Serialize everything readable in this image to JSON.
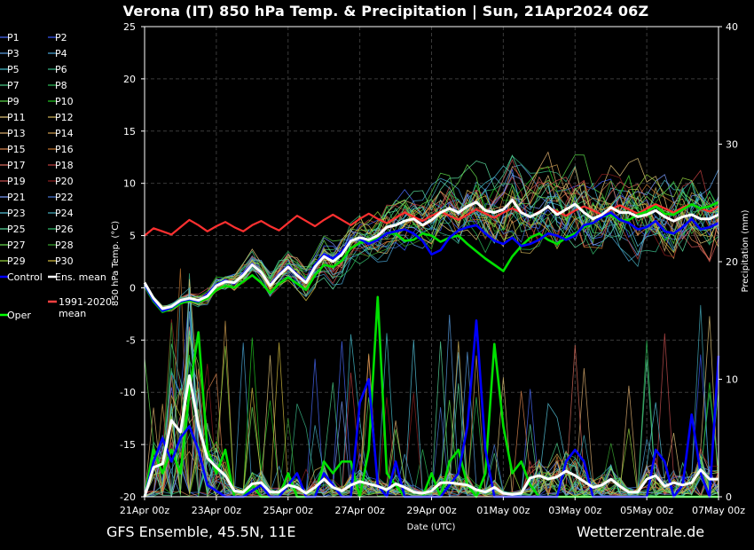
{
  "title": "Verona  (IT)  850 hPa Temp. & Precipitation | Sun, 21Apr2024 06Z",
  "footer": {
    "model": "GFS Ensemble, 45.5N, 11E",
    "site": "Wetterzentrale.de"
  },
  "chart_data": {
    "type": "line",
    "title": "Verona  (IT)  850 hPa Temp. & Precipitation | Sun, 21Apr2024 06Z",
    "xlabel": "Date (UTC)",
    "ylabel": "850 hPa Temp. (°C)",
    "y2label": "Precipitation (mm)",
    "xlim": [
      0,
      16
    ],
    "ylim": [
      -20,
      25
    ],
    "y2lim": [
      0,
      40
    ],
    "grid": true,
    "x_ticks": [
      {
        "x": 0,
        "label": "21Apr 00z"
      },
      {
        "x": 2,
        "label": "23Apr 00z"
      },
      {
        "x": 4,
        "label": "25Apr 00z"
      },
      {
        "x": 6,
        "label": "27Apr 00z"
      },
      {
        "x": 8,
        "label": "29Apr 00z"
      },
      {
        "x": 10,
        "label": "01May 00z"
      },
      {
        "x": 12,
        "label": "03May 00z"
      },
      {
        "x": 14,
        "label": "05May 00z"
      },
      {
        "x": 16,
        "label": "07May 00z"
      }
    ],
    "y_ticks": [
      25,
      20,
      15,
      10,
      5,
      0,
      -5,
      -10,
      -15,
      -20
    ],
    "y2_ticks": [
      40,
      30,
      20,
      10,
      0
    ],
    "legend": [
      {
        "label": "P1",
        "color": "#4a6cff"
      },
      {
        "label": "P2",
        "color": "#3a5bff"
      },
      {
        "label": "P3",
        "color": "#5aa0e6"
      },
      {
        "label": "P4",
        "color": "#4aa8d8"
      },
      {
        "label": "P5",
        "color": "#46c0d0"
      },
      {
        "label": "P6",
        "color": "#3ab88a"
      },
      {
        "label": "P7",
        "color": "#4ad08a"
      },
      {
        "label": "P8",
        "color": "#2ec05a"
      },
      {
        "label": "P9",
        "color": "#5ad84a"
      },
      {
        "label": "P10",
        "color": "#22cc22"
      },
      {
        "label": "P11",
        "color": "#e6c87a"
      },
      {
        "label": "P12",
        "color": "#d6b85a"
      },
      {
        "label": "P13",
        "color": "#e0b070"
      },
      {
        "label": "P14",
        "color": "#d2a050"
      },
      {
        "label": "P15",
        "color": "#e08850"
      },
      {
        "label": "P16",
        "color": "#c87830"
      },
      {
        "label": "P17",
        "color": "#e07060"
      },
      {
        "label": "P18",
        "color": "#c04040"
      },
      {
        "label": "P19",
        "color": "#c85050"
      },
      {
        "label": "P20",
        "color": "#902020"
      },
      {
        "label": "P21",
        "color": "#7a9cff"
      },
      {
        "label": "P22",
        "color": "#4a7ad8"
      },
      {
        "label": "P23",
        "color": "#56c8e0"
      },
      {
        "label": "P24",
        "color": "#46b0c0"
      },
      {
        "label": "P25",
        "color": "#5ae0a0"
      },
      {
        "label": "P26",
        "color": "#34c070"
      },
      {
        "label": "P27",
        "color": "#6ae050"
      },
      {
        "label": "P28",
        "color": "#3aa830"
      },
      {
        "label": "P29",
        "color": "#9ad840"
      },
      {
        "label": "P30",
        "color": "#d8c040"
      },
      {
        "label": "Control",
        "color": "#0000ff"
      },
      {
        "label": "Ens. mean",
        "color": "#ffffff"
      },
      {
        "label": "1991-2020 mean",
        "color": "#ff4040"
      },
      {
        "label": "Oper",
        "color": "#00ff00"
      }
    ],
    "series": [
      {
        "name": "1991-2020 mean",
        "axis": "temp",
        "x": [
          0,
          0.25,
          0.5,
          0.75,
          1,
          1.25,
          1.5,
          1.75,
          2,
          2.25,
          2.5,
          2.75,
          3,
          3.25,
          3.5,
          3.75,
          4,
          4.25,
          4.5,
          4.75,
          5,
          5.25,
          5.5,
          5.75,
          6,
          6.25,
          6.5,
          6.75,
          7,
          7.25,
          7.5,
          7.75,
          8,
          8.25,
          8.5,
          8.75,
          9,
          9.25,
          9.5,
          9.75,
          10,
          10.25,
          10.5,
          10.75,
          11,
          11.25,
          11.5,
          11.75,
          12,
          12.25,
          12.5,
          12.75,
          13,
          13.25,
          13.5,
          13.75,
          14,
          14.25,
          14.5,
          14.75,
          15,
          15.25,
          15.5,
          15.75,
          16
        ],
        "y": [
          5,
          5.7,
          5.4,
          5.1,
          5.8,
          6.5,
          6,
          5.4,
          5.9,
          6.3,
          5.8,
          5.4,
          6,
          6.4,
          5.9,
          5.5,
          6.2,
          6.9,
          6.4,
          5.9,
          6.5,
          7,
          6.5,
          6,
          6.6,
          7.1,
          6.6,
          6.2,
          6.7,
          7.2,
          6.8,
          6.4,
          6.9,
          7.3,
          6.9,
          6.5,
          7,
          7.5,
          7.1,
          6.7,
          7.2,
          7.6,
          7.2,
          6.8,
          7.3,
          7.7,
          7.3,
          6.9,
          7.4,
          7.8,
          7.4,
          7,
          7.5,
          7.9,
          7.5,
          7.1,
          7.6,
          8,
          7.6,
          7.2,
          7.7,
          8,
          7.6,
          7.3,
          7.8
        ]
      },
      {
        "name": "Ens. mean",
        "axis": "temp",
        "x": [
          0,
          0.25,
          0.5,
          0.75,
          1,
          1.25,
          1.5,
          1.75,
          2,
          2.25,
          2.5,
          2.75,
          3,
          3.25,
          3.5,
          3.75,
          4,
          4.25,
          4.5,
          4.75,
          5,
          5.25,
          5.5,
          5.75,
          6,
          6.25,
          6.5,
          6.75,
          7,
          7.25,
          7.5,
          7.75,
          8,
          8.25,
          8.5,
          8.75,
          9,
          9.25,
          9.5,
          9.75,
          10,
          10.25,
          10.5,
          10.75,
          11,
          11.25,
          11.5,
          11.75,
          12,
          12.25,
          12.5,
          12.75,
          13,
          13.25,
          13.5,
          13.75,
          14,
          14.25,
          14.5,
          14.75,
          15,
          15.25,
          15.5,
          15.75,
          16
        ],
        "y": [
          0.5,
          -1,
          -2,
          -1.8,
          -1.2,
          -1,
          -1.2,
          -0.8,
          0.2,
          0.6,
          0.5,
          1.2,
          2.2,
          1.5,
          0.2,
          1.2,
          2,
          1.2,
          0.5,
          2,
          3,
          2.5,
          3.2,
          4.5,
          4.8,
          4.6,
          5,
          5.8,
          6,
          6.4,
          6.6,
          6,
          6.5,
          7.2,
          7.6,
          7.2,
          7.8,
          8.2,
          7.4,
          7.2,
          7.5,
          8.4,
          7.2,
          6.8,
          7.2,
          7.8,
          7,
          7.5,
          8,
          7.2,
          6.6,
          7,
          7.7,
          7.2,
          7.2,
          6.8,
          7,
          7.4,
          6.8,
          6.4,
          6.8,
          7,
          6.6,
          6.6,
          7
        ]
      },
      {
        "name": "Control",
        "axis": "temp",
        "x": [
          0,
          0.25,
          0.5,
          0.75,
          1,
          1.25,
          1.5,
          1.75,
          2,
          2.25,
          2.5,
          2.75,
          3,
          3.25,
          3.5,
          3.75,
          4,
          4.25,
          4.5,
          4.75,
          5,
          5.25,
          5.5,
          5.75,
          6,
          6.25,
          6.5,
          6.75,
          7,
          7.25,
          7.5,
          7.75,
          8,
          8.25,
          8.5,
          8.75,
          9,
          9.25,
          9.5,
          9.75,
          10,
          10.25,
          10.5,
          10.75,
          11,
          11.25,
          11.5,
          11.75,
          12,
          12.25,
          12.5,
          12.75,
          13,
          13.25,
          13.5,
          13.75,
          14,
          14.25,
          14.5,
          14.75,
          15,
          15.25,
          15.5,
          15.75,
          16
        ],
        "y": [
          0.3,
          -1.2,
          -2.2,
          -1.9,
          -1.3,
          -1.1,
          -1.3,
          -0.6,
          0.3,
          0.7,
          0.4,
          1.3,
          2.3,
          1.4,
          0.3,
          1.3,
          2.1,
          1.3,
          0.6,
          2.2,
          3.2,
          2.8,
          3.5,
          4.6,
          4.7,
          4.2,
          4.6,
          5.2,
          5.4,
          5.6,
          5.2,
          4.5,
          3.2,
          3.6,
          4.8,
          5.5,
          5.8,
          6,
          5.2,
          4.5,
          4.2,
          4.8,
          4,
          4.2,
          4.6,
          5.2,
          5,
          4.6,
          5,
          6,
          6.2,
          6.8,
          7.2,
          6.5,
          6.2,
          5.6,
          5.8,
          6.4,
          5.4,
          5.2,
          5.8,
          6.6,
          5.6,
          5.8,
          6.2
        ]
      },
      {
        "name": "Oper",
        "axis": "temp",
        "x": [
          0,
          0.25,
          0.5,
          0.75,
          1,
          1.25,
          1.5,
          1.75,
          2,
          2.25,
          2.5,
          2.75,
          3,
          3.25,
          3.5,
          3.75,
          4,
          4.25,
          4.5,
          4.75,
          5,
          5.25,
          5.5,
          5.75,
          6,
          6.25,
          6.5,
          6.75,
          7,
          7.25,
          7.5,
          7.75,
          8,
          8.25,
          8.5,
          8.75,
          9,
          9.25,
          9.5,
          9.75,
          10,
          10.25,
          10.5,
          10.75,
          11,
          11.25,
          11.5,
          11.75,
          12,
          12.25,
          12.5,
          12.75,
          13,
          13.25,
          13.5,
          13.75,
          14,
          14.25,
          14.5,
          14.75,
          15,
          15.25,
          15.5,
          15.75,
          16
        ],
        "y": [
          0.2,
          -1.3,
          -2.3,
          -2,
          -1.5,
          -1.2,
          -1.4,
          -1,
          -0.2,
          0.2,
          0,
          0.6,
          1.2,
          0.5,
          -0.5,
          0.4,
          1,
          0.4,
          -0.2,
          1.2,
          2.2,
          2,
          2.6,
          3.8,
          4.3,
          4.5,
          4.7,
          5.2,
          5.2,
          4.5,
          4.6,
          5.2,
          5,
          4.4,
          4.8,
          5,
          4.2,
          3.5,
          2.8,
          2.2,
          1.6,
          3,
          4,
          4.8,
          5.2,
          4.6,
          4.2,
          4.8,
          5.2,
          5.8,
          6.2,
          6.8,
          7,
          6.4,
          6.5,
          7,
          7.3,
          7.8,
          7.1,
          7,
          7.5,
          8,
          7.6,
          7.8,
          8.2
        ]
      },
      {
        "name": "Ens. mean precip",
        "axis": "precip",
        "x": [
          0,
          0.25,
          0.5,
          0.75,
          1,
          1.25,
          1.5,
          1.75,
          2,
          2.25,
          2.5,
          2.75,
          3,
          3.25,
          3.5,
          3.75,
          4,
          4.25,
          4.5,
          4.75,
          5,
          5.25,
          5.5,
          5.75,
          6,
          6.25,
          6.5,
          6.75,
          7,
          7.25,
          7.5,
          7.75,
          8,
          8.25,
          8.5,
          8.75,
          9,
          9.25,
          9.5,
          9.75,
          10,
          10.25,
          10.5,
          10.75,
          11,
          11.25,
          11.5,
          11.75,
          12,
          12.25,
          12.5,
          12.75,
          13,
          13.25,
          13.5,
          13.75,
          14,
          14.25,
          14.5,
          14.75,
          15,
          15.25,
          15.5,
          15.75,
          16
        ],
        "y": [
          0,
          2.5,
          2.8,
          6.5,
          5.5,
          10.3,
          6,
          3.3,
          2.5,
          1.8,
          0.5,
          0.4,
          1.1,
          1.2,
          0.4,
          0.4,
          1,
          0.8,
          0.3,
          0.8,
          1.5,
          0.8,
          0.5,
          1,
          1.3,
          1.1,
          0.9,
          0.6,
          1.1,
          0.8,
          0.4,
          0.3,
          0.5,
          1.2,
          1.2,
          1.1,
          1,
          0.6,
          0.4,
          0.8,
          0.3,
          0.2,
          0.3,
          1.6,
          1.8,
          1.5,
          1.7,
          2.2,
          1.8,
          1.3,
          0.8,
          1,
          1.5,
          0.9,
          0.4,
          0.4,
          1.5,
          1.8,
          0.9,
          1.2,
          1,
          1.2,
          2.3,
          1.5,
          1.5
        ]
      },
      {
        "name": "Control precip",
        "axis": "precip",
        "x": [
          0,
          0.25,
          0.5,
          0.75,
          1,
          1.25,
          1.5,
          1.75,
          2,
          2.25,
          2.5,
          2.75,
          3,
          3.25,
          3.5,
          3.75,
          4,
          4.25,
          4.5,
          4.75,
          5,
          5.25,
          5.5,
          5.75,
          6,
          6.25,
          6.5,
          6.75,
          7,
          7.25,
          7.5,
          7.75,
          8,
          8.25,
          8.5,
          8.75,
          9,
          9.25,
          9.5,
          9.75,
          10,
          10.25,
          10.5,
          10.75,
          11,
          11.25,
          11.5,
          11.75,
          12,
          12.25,
          12.5,
          12.75,
          13,
          13.25,
          13.5,
          13.75,
          14,
          14.25,
          14.5,
          14.75,
          15,
          15.25,
          15.5,
          15.75,
          16
        ],
        "y": [
          0,
          3,
          5,
          3,
          5,
          6,
          4,
          1,
          0.5,
          0,
          0,
          0,
          0.5,
          1,
          0,
          0,
          1,
          2,
          0,
          0,
          2,
          1,
          0,
          0,
          8,
          10,
          1,
          0,
          3,
          0,
          0,
          0,
          0,
          0,
          1,
          2,
          6,
          15,
          4,
          0,
          0,
          0,
          0,
          0,
          0,
          0,
          0,
          3,
          4,
          3,
          0,
          0,
          0,
          0,
          0,
          0,
          0,
          4,
          3,
          0,
          1,
          7,
          2,
          0,
          12
        ]
      },
      {
        "name": "Oper precip",
        "axis": "precip",
        "x": [
          0,
          0.25,
          0.5,
          0.75,
          1,
          1.25,
          1.5,
          1.75,
          2,
          2.25,
          2.5,
          2.75,
          3,
          3.25,
          3.5,
          3.75,
          4,
          4.25,
          4.5,
          4.75,
          5,
          5.25,
          5.5,
          5.75,
          6,
          6.25,
          6.5,
          6.75,
          7,
          7.25,
          7.5,
          7.75,
          8,
          8.25,
          8.5,
          8.75,
          9,
          9.25,
          9.5,
          9.75,
          10,
          10.25,
          10.5,
          10.75,
          11,
          11.25,
          11.5,
          11.75,
          12,
          12.25,
          12.5,
          12.75,
          13,
          13.25,
          13.5,
          13.75,
          14,
          14.25,
          14.5,
          14.75,
          15,
          15.25,
          15.5,
          15.75,
          16
        ],
        "y": [
          0,
          4,
          2,
          4,
          2,
          9,
          14,
          4,
          2,
          4,
          0,
          0,
          1,
          0,
          0,
          0,
          2,
          0,
          0,
          0,
          3,
          2,
          3,
          3,
          0,
          4,
          17,
          2,
          1,
          0,
          0,
          0,
          2,
          0,
          3,
          4,
          1,
          0,
          2,
          13,
          6,
          2,
          3,
          1,
          0,
          0,
          0,
          0,
          0,
          0,
          0,
          0,
          0,
          0,
          0,
          0,
          0,
          0,
          0,
          0,
          0,
          0,
          0,
          0,
          0
        ]
      }
    ]
  }
}
